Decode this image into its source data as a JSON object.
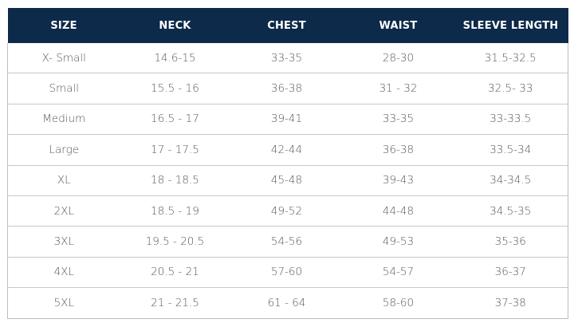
{
  "header_color": "#0d2a4a",
  "columns": [
    "SIZE",
    "NECK",
    "CHEST",
    "WAIST",
    "SLEEVE LENGTH"
  ],
  "rows": [
    [
      "X- Small",
      "14.6-15",
      "33-35",
      "28-30",
      "31.5-32.5"
    ],
    [
      "Small",
      "15.5 - 16",
      "36-38",
      "31 - 32",
      "32.5- 33"
    ],
    [
      "Medium",
      "16.5 - 17",
      "39-41",
      "33-35",
      "33-33.5"
    ],
    [
      "Large",
      "17 - 17.5",
      "42-44",
      "36-38",
      "33.5-34"
    ],
    [
      "XL",
      "18 - 18.5",
      "45-48",
      "39-43",
      "34-34.5"
    ],
    [
      "2XL",
      "18.5 - 19",
      "49-52",
      "44-48",
      "34.5-35"
    ],
    [
      "3XL",
      "19.5 - 20.5",
      "54-56",
      "49-53",
      "35-36"
    ],
    [
      "4XL",
      "20.5 - 21",
      "57-60",
      "54-57",
      "36-37"
    ],
    [
      "5XL",
      "21 - 21.5",
      "61 - 64",
      "58-60",
      "37-38"
    ]
  ]
}
